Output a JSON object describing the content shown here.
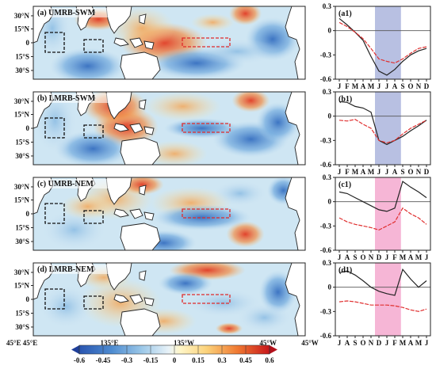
{
  "map_titles": [
    "(a) UMRB-SWM",
    "(b) LMRB-SWM",
    "(c) UMRB-NEM",
    "(d) LMRB-NEM"
  ],
  "map_lat_labels": [
    "30°N",
    "15°N",
    "0",
    "15°S",
    "30°S"
  ],
  "map_lon_labels": [
    "45°E",
    "135°E",
    "135°W",
    "45°W"
  ],
  "colorbar_labels": [
    "-0.6",
    "-0.45",
    "-0.3",
    "-0.15",
    "0",
    "0.15",
    "0.3",
    "0.45",
    "0.6"
  ],
  "colors": {
    "black_line": "#222222",
    "red_line": "#e03030",
    "blue_shade": "#b8c0e2",
    "pink_shade": "#f6b6d6"
  },
  "chart_data": [
    {
      "type": "line",
      "title": "(a1)",
      "x": [
        "J",
        "F",
        "M",
        "A",
        "M",
        "J",
        "J",
        "A",
        "S",
        "O",
        "N",
        "D"
      ],
      "ylim": [
        -0.6,
        0.3
      ],
      "yticks": [
        "0.3",
        "0",
        "-0.3",
        "-0.6"
      ],
      "shade": {
        "from": 5,
        "to": 8,
        "color": "blue"
      },
      "series": [
        {
          "color": "black",
          "values": [
            0.15,
            0.07,
            -0.02,
            -0.12,
            -0.32,
            -0.5,
            -0.55,
            -0.48,
            -0.38,
            -0.3,
            -0.25,
            -0.22
          ]
        },
        {
          "color": "red",
          "values": [
            0.1,
            0.05,
            -0.02,
            -0.1,
            -0.22,
            -0.35,
            -0.38,
            -0.4,
            -0.35,
            -0.28,
            -0.22,
            -0.2
          ]
        }
      ]
    },
    {
      "type": "line",
      "title": "(b1)",
      "x": [
        "J",
        "F",
        "M",
        "A",
        "M",
        "J",
        "J",
        "A",
        "S",
        "O",
        "N",
        "D"
      ],
      "ylim": [
        -0.6,
        0.3
      ],
      "yticks": [
        "0.3",
        "0",
        "-0.3",
        "-0.6"
      ],
      "shade": {
        "from": 5,
        "to": 8,
        "color": "blue"
      },
      "series": [
        {
          "color": "black",
          "values": [
            0.18,
            0.17,
            0.12,
            0.1,
            0.05,
            -0.3,
            -0.35,
            -0.3,
            -0.25,
            -0.18,
            -0.12,
            -0.05
          ]
        },
        {
          "color": "red",
          "values": [
            -0.05,
            -0.06,
            -0.04,
            -0.1,
            -0.15,
            -0.3,
            -0.33,
            -0.3,
            -0.22,
            -0.15,
            -0.1,
            -0.05
          ]
        }
      ]
    },
    {
      "type": "line",
      "title": "(c1)",
      "x": [
        "J",
        "A",
        "S",
        "O",
        "N",
        "D",
        "J",
        "F",
        "M",
        "A",
        "M",
        "J"
      ],
      "ylim": [
        -0.6,
        0.3
      ],
      "yticks": [
        "0.3",
        "0",
        "-0.3",
        "-0.6"
      ],
      "shade": {
        "from": 5,
        "to": 8,
        "color": "pink"
      },
      "series": [
        {
          "color": "black",
          "values": [
            0.12,
            0.1,
            0.05,
            0.0,
            -0.05,
            -0.1,
            -0.12,
            -0.08,
            0.25,
            0.18,
            0.12,
            0.05
          ]
        },
        {
          "color": "red",
          "values": [
            -0.2,
            -0.25,
            -0.28,
            -0.3,
            -0.32,
            -0.35,
            -0.3,
            -0.25,
            -0.08,
            -0.15,
            -0.2,
            -0.28
          ]
        }
      ]
    },
    {
      "type": "line",
      "title": "(d1)",
      "x": [
        "J",
        "A",
        "S",
        "O",
        "N",
        "D",
        "J",
        "F",
        "M",
        "A",
        "M",
        "J"
      ],
      "ylim": [
        -0.6,
        0.3
      ],
      "yticks": [
        "0.3",
        "0",
        "-0.3",
        "-0.6"
      ],
      "shade": {
        "from": 5,
        "to": 8,
        "color": "pink"
      },
      "series": [
        {
          "color": "black",
          "values": [
            0.18,
            0.2,
            0.15,
            0.08,
            0.0,
            -0.05,
            -0.08,
            -0.1,
            0.22,
            0.1,
            0.0,
            0.08
          ]
        },
        {
          "color": "red",
          "values": [
            -0.18,
            -0.17,
            -0.18,
            -0.2,
            -0.22,
            -0.22,
            -0.22,
            -0.23,
            -0.25,
            -0.28,
            -0.3,
            -0.27
          ]
        }
      ]
    }
  ]
}
